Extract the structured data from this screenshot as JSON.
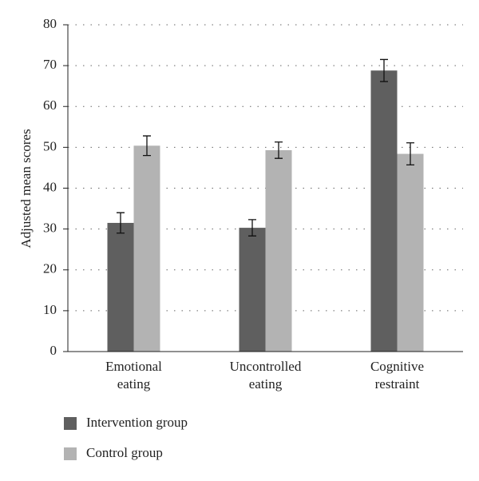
{
  "chart_data": {
    "type": "bar",
    "ylabel": "Adjusted mean scores",
    "categories": [
      "Emotional eating",
      "Uncontrolled eating",
      "Cognitive restraint"
    ],
    "series": [
      {
        "name": "Intervention group",
        "color": "#5f5f5f",
        "values": [
          31.5,
          30.3,
          68.8
        ],
        "errors": [
          2.5,
          2.0,
          2.7
        ]
      },
      {
        "name": "Control group",
        "color": "#b3b3b3",
        "values": [
          50.4,
          49.3,
          48.4
        ],
        "errors": [
          2.4,
          2.0,
          2.7
        ]
      }
    ],
    "ylim": [
      0,
      80
    ],
    "yticks": [
      0,
      10,
      20,
      30,
      40,
      50,
      60,
      70,
      80
    ],
    "grid": true
  }
}
